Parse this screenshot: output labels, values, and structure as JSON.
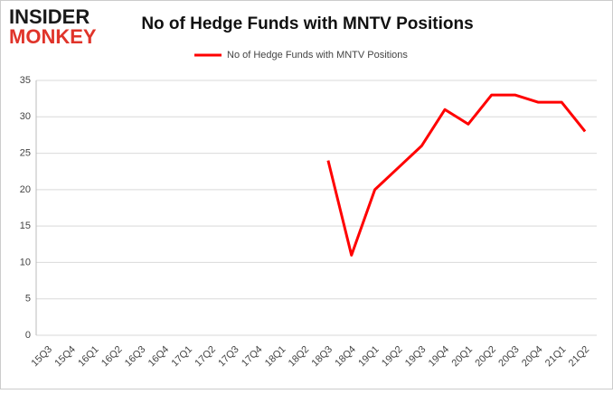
{
  "logo": [
    "INSIDER",
    "MONKEY"
  ],
  "chart_data": {
    "type": "line",
    "title": "No of Hedge Funds with MNTV Positions",
    "categories": [
      "15Q3",
      "15Q4",
      "16Q1",
      "16Q2",
      "16Q3",
      "16Q4",
      "17Q1",
      "17Q2",
      "17Q3",
      "17Q4",
      "18Q1",
      "18Q2",
      "18Q3",
      "18Q4",
      "19Q1",
      "19Q2",
      "19Q3",
      "19Q4",
      "20Q1",
      "20Q2",
      "20Q3",
      "20Q4",
      "21Q1",
      "21Q2"
    ],
    "series": [
      {
        "name": "No of Hedge Funds with MNTV Positions",
        "color": "#ff0000",
        "values": [
          null,
          null,
          null,
          null,
          null,
          null,
          null,
          null,
          null,
          null,
          null,
          null,
          24,
          11,
          20,
          23,
          26,
          31,
          29,
          33,
          33,
          32,
          32,
          28
        ]
      }
    ],
    "ylim": [
      0,
      35
    ],
    "yticks": [
      0,
      5,
      10,
      15,
      20,
      25,
      30,
      35
    ],
    "grid": true,
    "legend": "top"
  }
}
